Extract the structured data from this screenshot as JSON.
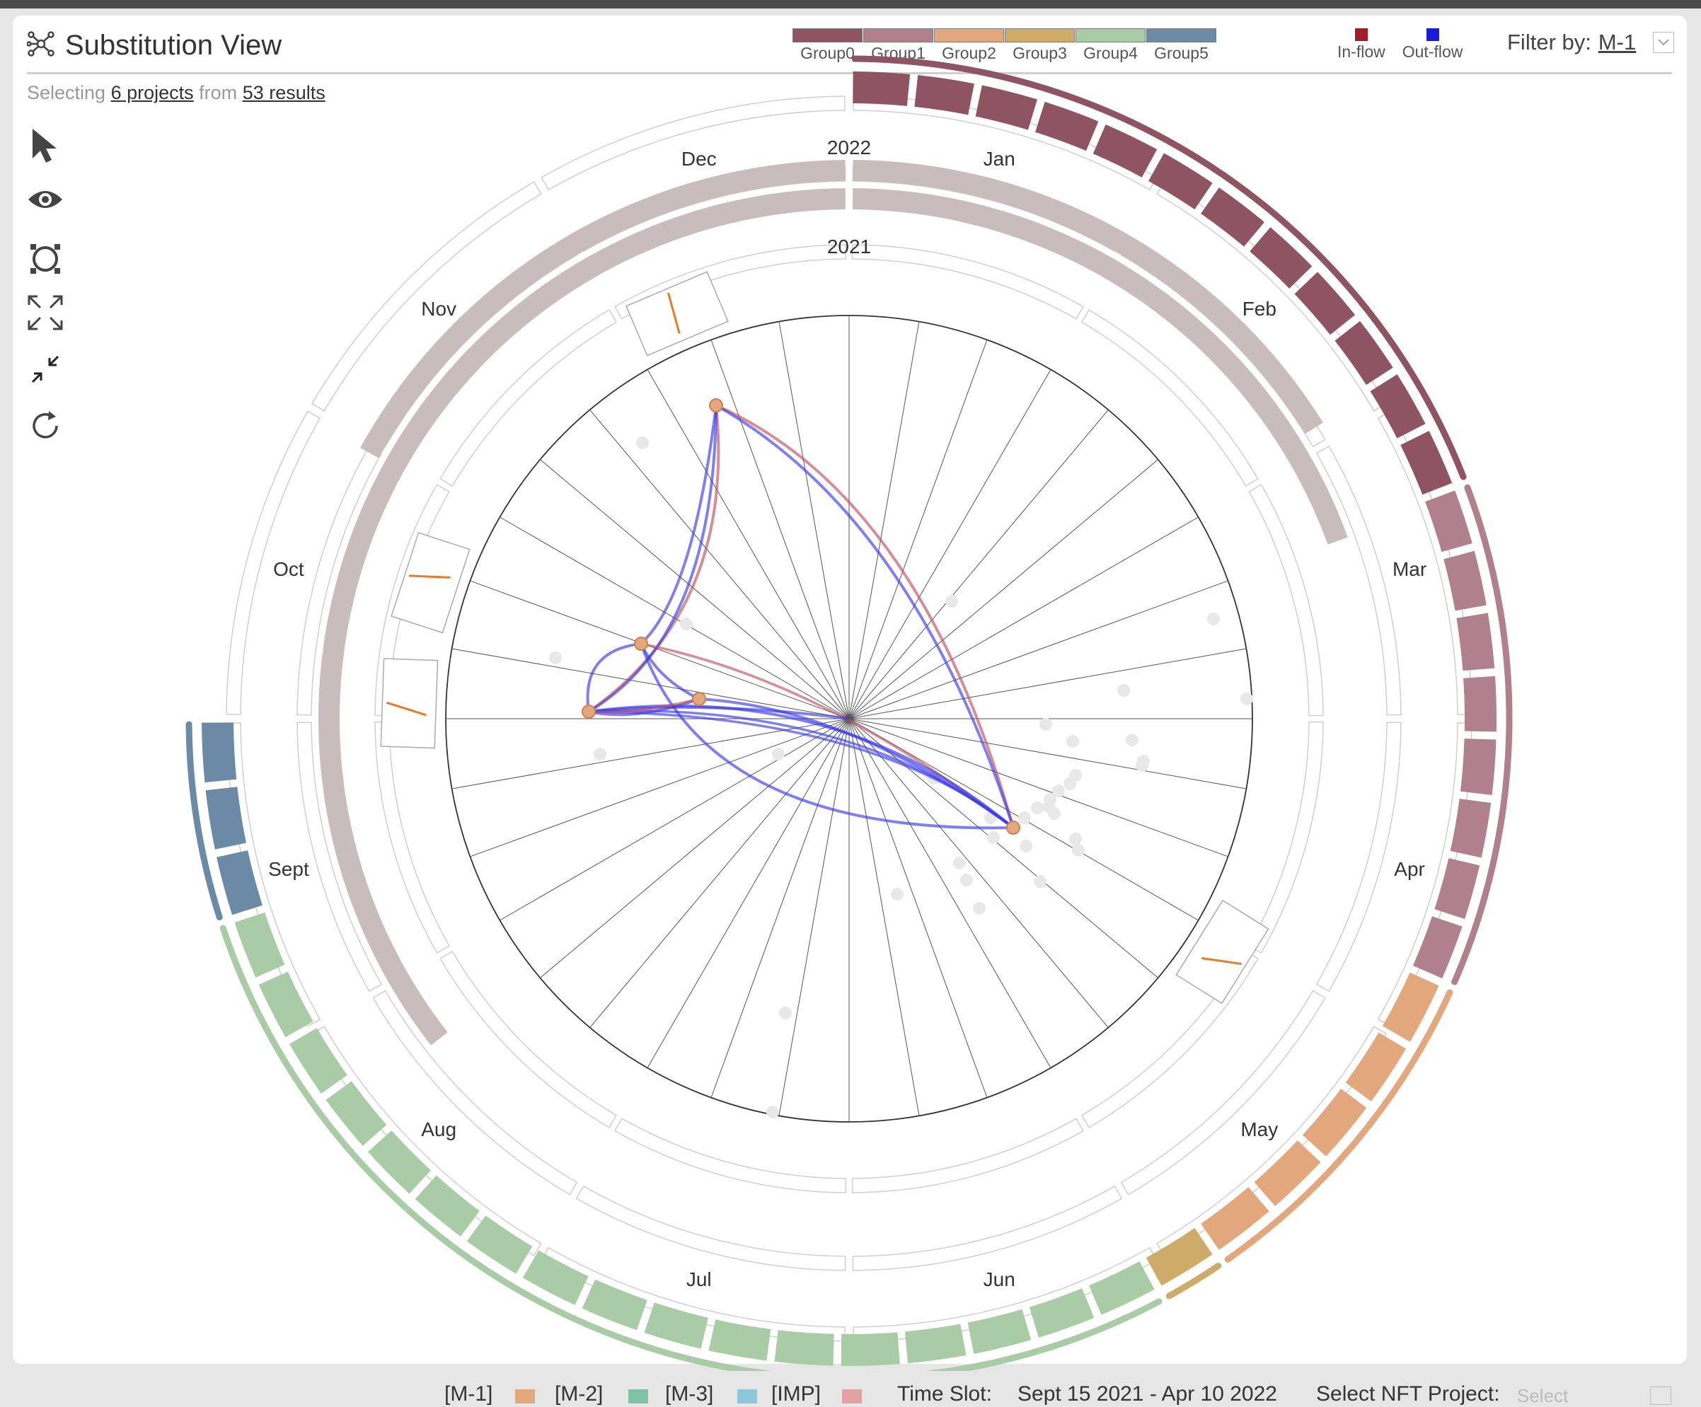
{
  "view": {
    "title": "Substitution View",
    "icon": "network-icon"
  },
  "legend_groups": [
    {
      "label": "Group0",
      "color": "#8e5462"
    },
    {
      "label": "Group1",
      "color": "#b0808e"
    },
    {
      "label": "Group2",
      "color": "#e3a77e"
    },
    {
      "label": "Group3",
      "color": "#cfab6a"
    },
    {
      "label": "Group4",
      "color": "#a9cba6"
    },
    {
      "label": "Group5",
      "color": "#6a8aa6"
    }
  ],
  "legend_flow": [
    {
      "label": "In-flow",
      "color": "#a01e2c"
    },
    {
      "label": "Out-flow",
      "color": "#1a1ad8"
    }
  ],
  "filter": {
    "label": "Filter by:",
    "value": "M-1"
  },
  "selection": {
    "prefix": "Selecting",
    "projects": "6 projects",
    "middle": "from",
    "results": "53 results"
  },
  "tools": [
    {
      "name": "select-tool",
      "icon": "cursor-icon"
    },
    {
      "name": "view-tool",
      "icon": "eye-icon"
    },
    {
      "name": "focus-tool",
      "icon": "circle-focus-icon"
    },
    {
      "name": "expand-tool",
      "icon": "expand-icon"
    },
    {
      "name": "collapse-tool",
      "icon": "collapse-icon"
    },
    {
      "name": "reset-tool",
      "icon": "refresh-icon"
    }
  ],
  "radial": {
    "months": [
      "Jan",
      "Feb",
      "Mar",
      "Apr",
      "May",
      "Jun",
      "Jul",
      "Aug",
      "Sept",
      "Oct",
      "Nov",
      "Dec"
    ],
    "year_outer": "2022",
    "year_inner": "2021",
    "group_bands": [
      {
        "group": "Group0",
        "color": "#8e5462",
        "start_month": 0,
        "end_month": 2.3
      },
      {
        "group": "Group1",
        "color": "#b0808e",
        "start_month": 2.3,
        "end_month": 3.8
      },
      {
        "group": "Group2",
        "color": "#e3a77e",
        "start_month": 3.8,
        "end_month": 4.85
      },
      {
        "group": "Group3",
        "color": "#cfab6a",
        "start_month": 4.85,
        "end_month": 5.05
      },
      {
        "group": "Group4",
        "color": "#a9cba6",
        "start_month": 5.05,
        "end_month": 8.4
      },
      {
        "group": "Group5",
        "color": "#6a8aa6",
        "start_month": 8.4,
        "end_month": 9.0
      }
    ],
    "time_slot_arc_color": "#c8bcbc"
  },
  "bottom_bar": {
    "items": [
      {
        "label": "[M-1]",
        "color": "#e3a77e"
      },
      {
        "label": "[M-2]",
        "color": "#7fc1a6"
      },
      {
        "label": "[M-3]",
        "color": "#8ec6dc"
      },
      {
        "label": "[IMP]",
        "color": "#e0a0a4"
      }
    ],
    "time_slot_label": "Time Slot:",
    "time_slot_value": "Sept 15 2021 - Apr 10 2022",
    "project_label": "Select NFT Project:",
    "project_placeholder": "Select"
  }
}
